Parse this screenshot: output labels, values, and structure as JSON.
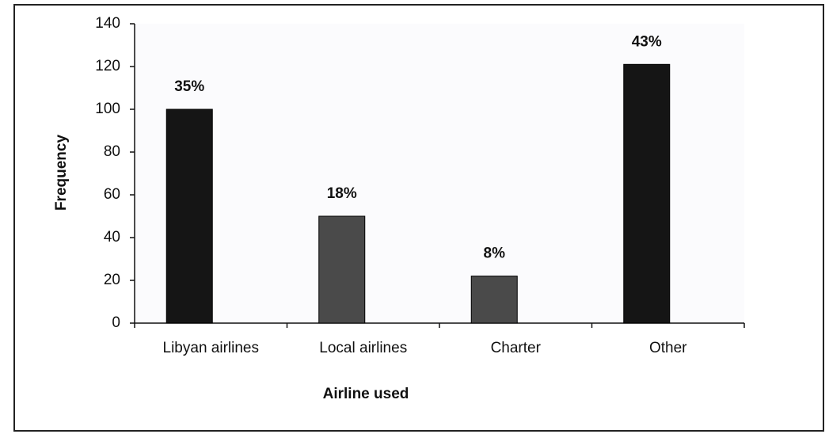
{
  "chart_data": {
    "type": "bar",
    "x_label": "Airline used",
    "y_label": "Frequency",
    "categories": [
      "Libyan airlines",
      "Local airlines",
      "Charter",
      "Other"
    ],
    "values": [
      100,
      50,
      22,
      121
    ],
    "annotations": [
      "35%",
      "18%",
      "8%",
      "43%"
    ],
    "colors": [
      "#151515",
      "#4a4a4a",
      "#4a4a4a",
      "#151515"
    ],
    "ylim": [
      0,
      140
    ],
    "yticks": [
      0,
      20,
      40,
      60,
      80,
      100,
      120,
      140
    ],
    "grid": false
  }
}
